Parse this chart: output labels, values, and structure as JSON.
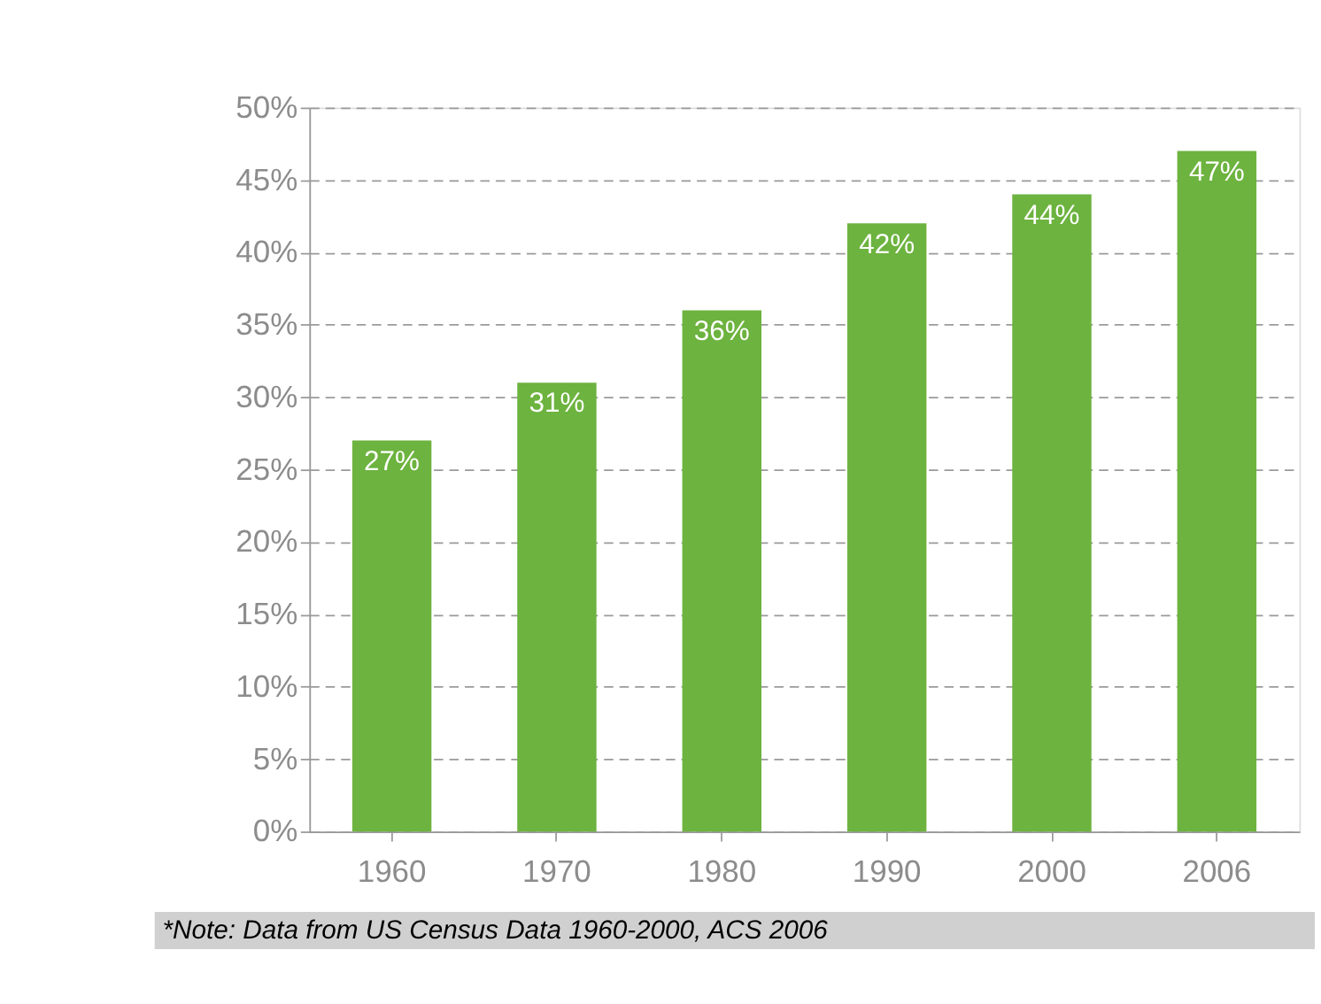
{
  "chart_data": {
    "type": "bar",
    "categories": [
      "1960",
      "1970",
      "1980",
      "1990",
      "2000",
      "2006"
    ],
    "values": [
      27,
      31,
      36,
      42,
      44,
      47
    ],
    "value_labels": [
      "27%",
      "31%",
      "36%",
      "42%",
      "44%",
      "47%"
    ],
    "color": "#6db33f",
    "ylim": [
      0,
      50
    ],
    "yticks": [
      {
        "value": 0,
        "label": "0%"
      },
      {
        "value": 5,
        "label": "5%"
      },
      {
        "value": 10,
        "label": "10%"
      },
      {
        "value": 15,
        "label": "15%"
      },
      {
        "value": 20,
        "label": "20%"
      },
      {
        "value": 25,
        "label": "25%"
      },
      {
        "value": 30,
        "label": "30%"
      },
      {
        "value": 35,
        "label": "35%"
      },
      {
        "value": 40,
        "label": "40%"
      },
      {
        "value": 45,
        "label": "45%"
      },
      {
        "value": 50,
        "label": "50%"
      }
    ],
    "grid": "y",
    "annotations": [
      "*Note: Data from US Census Data 1960-2000, ACS 2006"
    ]
  }
}
